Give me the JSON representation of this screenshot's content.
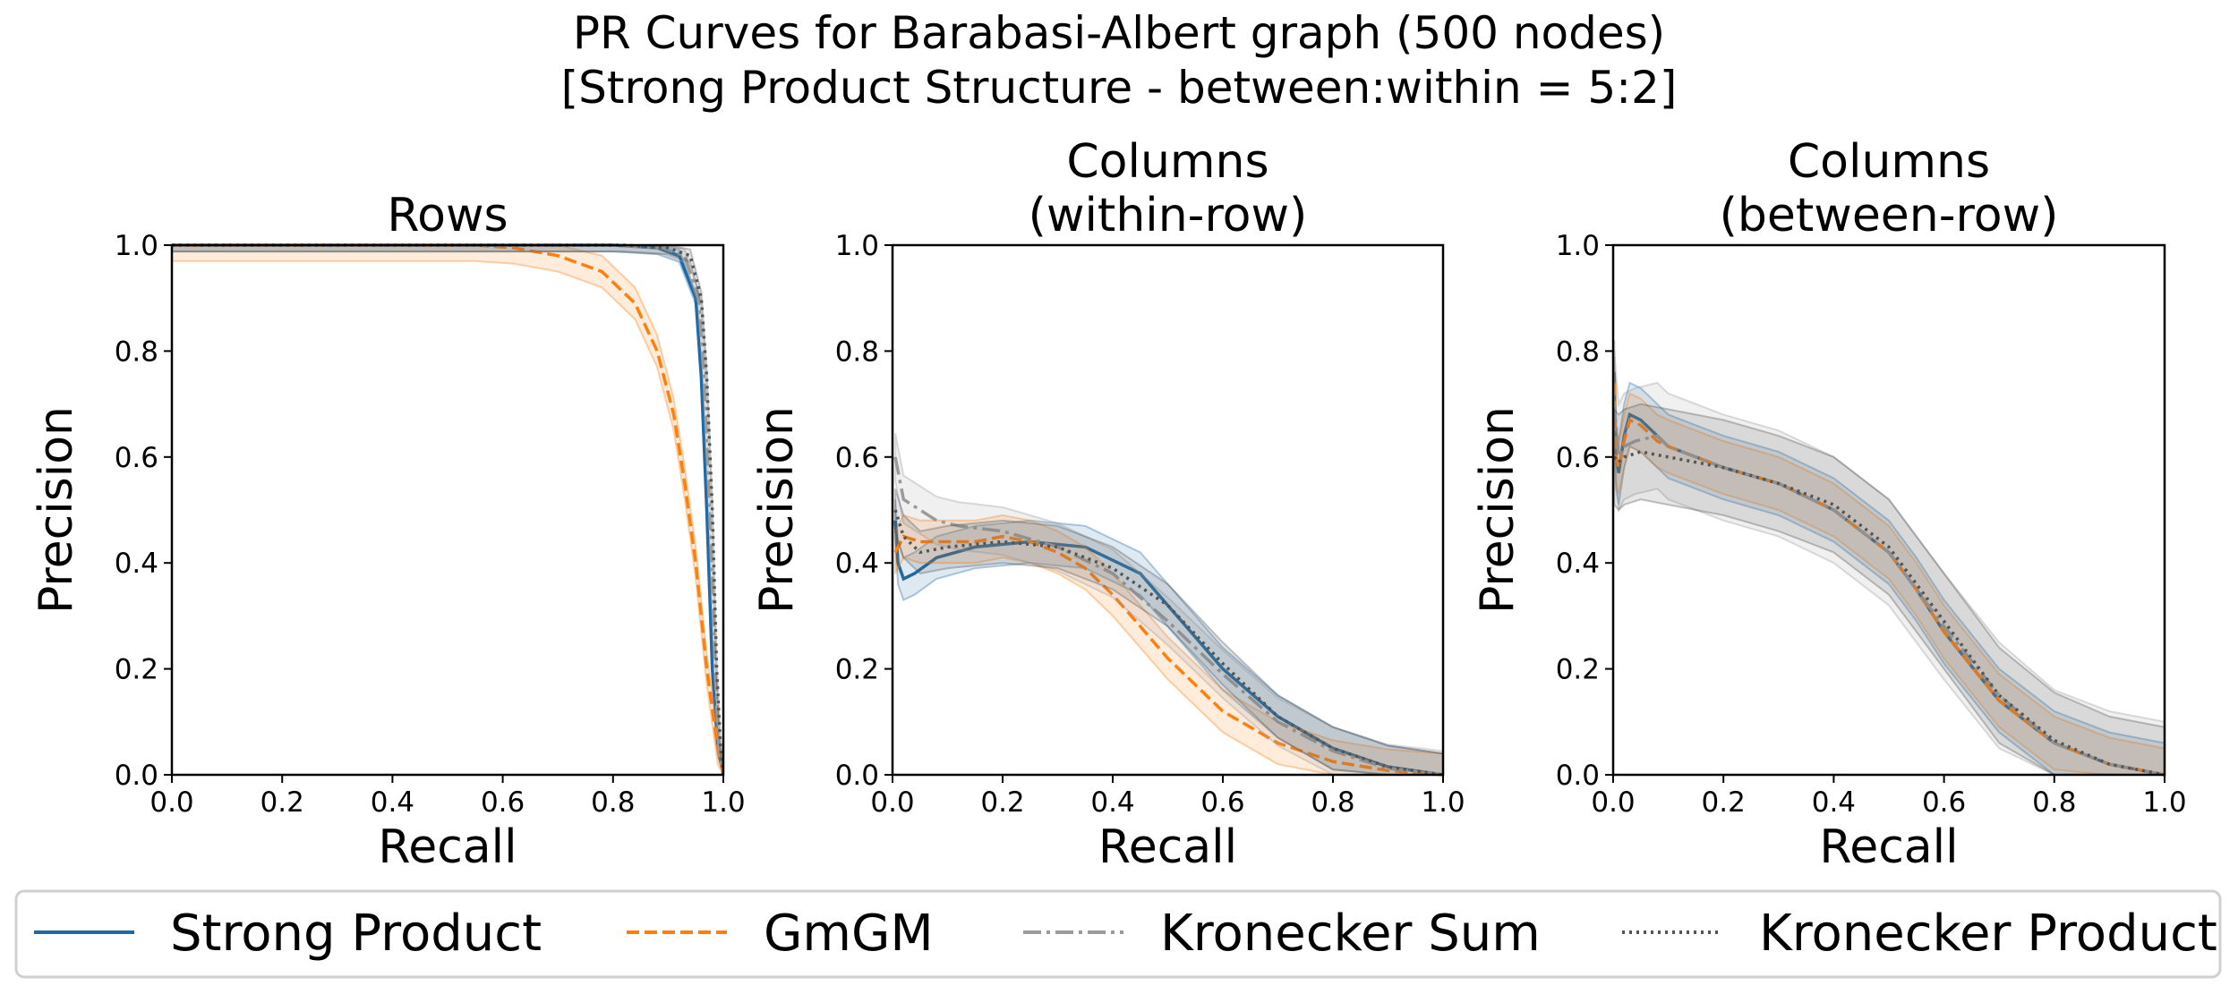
{
  "title_lines": [
    "PR Curves for Barabasi-Albert graph (500 nodes)",
    "[Strong Product Structure - between:within = 5:2]"
  ],
  "legend": [
    {
      "label": "Strong Product",
      "color": "#1f6aa5",
      "style": "solid"
    },
    {
      "label": "GmGM",
      "color": "#ff7f0e",
      "style": "dashed"
    },
    {
      "label": "Kronecker Sum",
      "color": "#9b9b9b",
      "style": "dashdot"
    },
    {
      "label": "Kronecker Product",
      "color": "#555555",
      "style": "dotted"
    }
  ],
  "chart_data": [
    {
      "type": "line",
      "title_lines": [
        "Rows"
      ],
      "xlabel": "Recall",
      "ylabel": "Precision",
      "xlim": [
        0,
        1
      ],
      "ylim": [
        0,
        1
      ],
      "xticks": [
        "0.0",
        "0.2",
        "0.4",
        "0.6",
        "0.8",
        "1.0"
      ],
      "yticks": [
        "0.0",
        "0.2",
        "0.4",
        "0.6",
        "0.8",
        "1.0"
      ],
      "series": [
        {
          "name": "Strong Product",
          "x": [
            0,
            0.5,
            0.8,
            0.88,
            0.92,
            0.95,
            0.96,
            0.97,
            0.98,
            0.99,
            1.0
          ],
          "y": [
            1,
            1,
            1,
            0.995,
            0.98,
            0.9,
            0.75,
            0.5,
            0.2,
            0.05,
            0
          ],
          "band": 0.012
        },
        {
          "name": "GmGM",
          "x": [
            0,
            0.55,
            0.62,
            0.7,
            0.78,
            0.84,
            0.88,
            0.91,
            0.93,
            0.95,
            0.97,
            0.99,
            1.0
          ],
          "y": [
            1,
            1,
            0.995,
            0.98,
            0.95,
            0.89,
            0.8,
            0.68,
            0.55,
            0.4,
            0.2,
            0.05,
            0
          ],
          "band": 0.03
        },
        {
          "name": "Kronecker Sum",
          "x": [
            0,
            0.5,
            0.8,
            0.89,
            0.93,
            0.955,
            0.965,
            0.975,
            0.985,
            0.992,
            1.0
          ],
          "y": [
            1,
            1,
            1,
            0.995,
            0.98,
            0.9,
            0.75,
            0.5,
            0.2,
            0.05,
            0
          ],
          "band": 0.012
        },
        {
          "name": "Kronecker Product",
          "x": [
            0,
            0.5,
            0.82,
            0.9,
            0.94,
            0.96,
            0.97,
            0.98,
            0.988,
            0.995,
            1.0
          ],
          "y": [
            1,
            1,
            1,
            0.995,
            0.98,
            0.9,
            0.75,
            0.5,
            0.2,
            0.05,
            0
          ],
          "band": 0.012
        }
      ]
    },
    {
      "type": "line",
      "title_lines": [
        "Columns",
        "(within-row)"
      ],
      "xlabel": "Recall",
      "ylabel": "Precision",
      "xlim": [
        0,
        1
      ],
      "ylim": [
        0,
        1
      ],
      "xticks": [
        "0.0",
        "0.2",
        "0.4",
        "0.6",
        "0.8",
        "1.0"
      ],
      "yticks": [
        "0.0",
        "0.2",
        "0.4",
        "0.6",
        "0.8",
        "1.0"
      ],
      "series": [
        {
          "name": "Strong Product",
          "x": [
            0.005,
            0.01,
            0.02,
            0.04,
            0.08,
            0.15,
            0.25,
            0.35,
            0.45,
            0.5,
            0.55,
            0.6,
            0.7,
            0.8,
            0.9,
            1.0
          ],
          "y": [
            0.48,
            0.4,
            0.37,
            0.38,
            0.41,
            0.43,
            0.44,
            0.43,
            0.38,
            0.32,
            0.26,
            0.2,
            0.11,
            0.05,
            0.015,
            0
          ],
          "band": 0.04
        },
        {
          "name": "GmGM",
          "x": [
            0.005,
            0.02,
            0.05,
            0.1,
            0.15,
            0.2,
            0.25,
            0.3,
            0.35,
            0.4,
            0.45,
            0.5,
            0.6,
            0.7,
            0.8,
            0.9,
            1.0
          ],
          "y": [
            0.42,
            0.45,
            0.44,
            0.44,
            0.44,
            0.45,
            0.44,
            0.42,
            0.39,
            0.34,
            0.28,
            0.22,
            0.12,
            0.06,
            0.025,
            0.008,
            0
          ],
          "band": 0.04
        },
        {
          "name": "Kronecker Sum",
          "x": [
            0.005,
            0.02,
            0.05,
            0.08,
            0.12,
            0.2,
            0.3,
            0.4,
            0.5,
            0.6,
            0.7,
            0.8,
            0.9,
            1.0
          ],
          "y": [
            0.6,
            0.52,
            0.5,
            0.48,
            0.47,
            0.46,
            0.43,
            0.38,
            0.29,
            0.19,
            0.1,
            0.045,
            0.012,
            0
          ],
          "band": 0.045
        },
        {
          "name": "Kronecker Product",
          "x": [
            0.005,
            0.02,
            0.05,
            0.1,
            0.2,
            0.3,
            0.4,
            0.5,
            0.6,
            0.7,
            0.8,
            0.9,
            1.0
          ],
          "y": [
            0.5,
            0.45,
            0.42,
            0.43,
            0.44,
            0.43,
            0.39,
            0.32,
            0.21,
            0.11,
            0.05,
            0.015,
            0
          ],
          "band": 0.04
        }
      ]
    },
    {
      "type": "line",
      "title_lines": [
        "Columns",
        "(between-row)"
      ],
      "xlabel": "Recall",
      "ylabel": "Precision",
      "xlim": [
        0,
        1
      ],
      "ylim": [
        0,
        1
      ],
      "xticks": [
        "0.0",
        "0.2",
        "0.4",
        "0.6",
        "0.8",
        "1.0"
      ],
      "yticks": [
        "0.0",
        "0.2",
        "0.4",
        "0.6",
        "0.8",
        "1.0"
      ],
      "series": [
        {
          "name": "Strong Product",
          "x": [
            0.002,
            0.005,
            0.01,
            0.02,
            0.03,
            0.05,
            0.08,
            0.1,
            0.15,
            0.2,
            0.3,
            0.4,
            0.5,
            0.55,
            0.6,
            0.7,
            0.8,
            0.9,
            1.0
          ],
          "y": [
            0.76,
            0.6,
            0.57,
            0.64,
            0.68,
            0.67,
            0.64,
            0.62,
            0.6,
            0.58,
            0.55,
            0.5,
            0.42,
            0.35,
            0.27,
            0.14,
            0.06,
            0.02,
            0
          ],
          "band": 0.06
        },
        {
          "name": "GmGM",
          "x": [
            0.002,
            0.005,
            0.01,
            0.02,
            0.03,
            0.05,
            0.08,
            0.1,
            0.15,
            0.2,
            0.3,
            0.4,
            0.5,
            0.55,
            0.6,
            0.7,
            0.8,
            0.9,
            1.0
          ],
          "y": [
            0.74,
            0.6,
            0.58,
            0.63,
            0.67,
            0.66,
            0.63,
            0.62,
            0.6,
            0.58,
            0.55,
            0.5,
            0.42,
            0.35,
            0.27,
            0.14,
            0.06,
            0.02,
            0
          ],
          "band": 0.05
        },
        {
          "name": "Kronecker Sum",
          "x": [
            0.002,
            0.01,
            0.02,
            0.04,
            0.08,
            0.1,
            0.15,
            0.2,
            0.3,
            0.4,
            0.5,
            0.6,
            0.7,
            0.8,
            0.9,
            1.0
          ],
          "y": [
            0.7,
            0.6,
            0.62,
            0.63,
            0.64,
            0.62,
            0.6,
            0.58,
            0.55,
            0.5,
            0.42,
            0.28,
            0.15,
            0.06,
            0.02,
            0
          ],
          "band": 0.1
        },
        {
          "name": "Kronecker Product",
          "x": [
            0.002,
            0.01,
            0.02,
            0.05,
            0.1,
            0.15,
            0.2,
            0.3,
            0.4,
            0.5,
            0.6,
            0.7,
            0.8,
            0.9,
            1.0
          ],
          "y": [
            0.6,
            0.59,
            0.6,
            0.61,
            0.6,
            0.59,
            0.58,
            0.55,
            0.51,
            0.43,
            0.29,
            0.15,
            0.065,
            0.02,
            0
          ],
          "band": 0.09
        }
      ]
    }
  ]
}
